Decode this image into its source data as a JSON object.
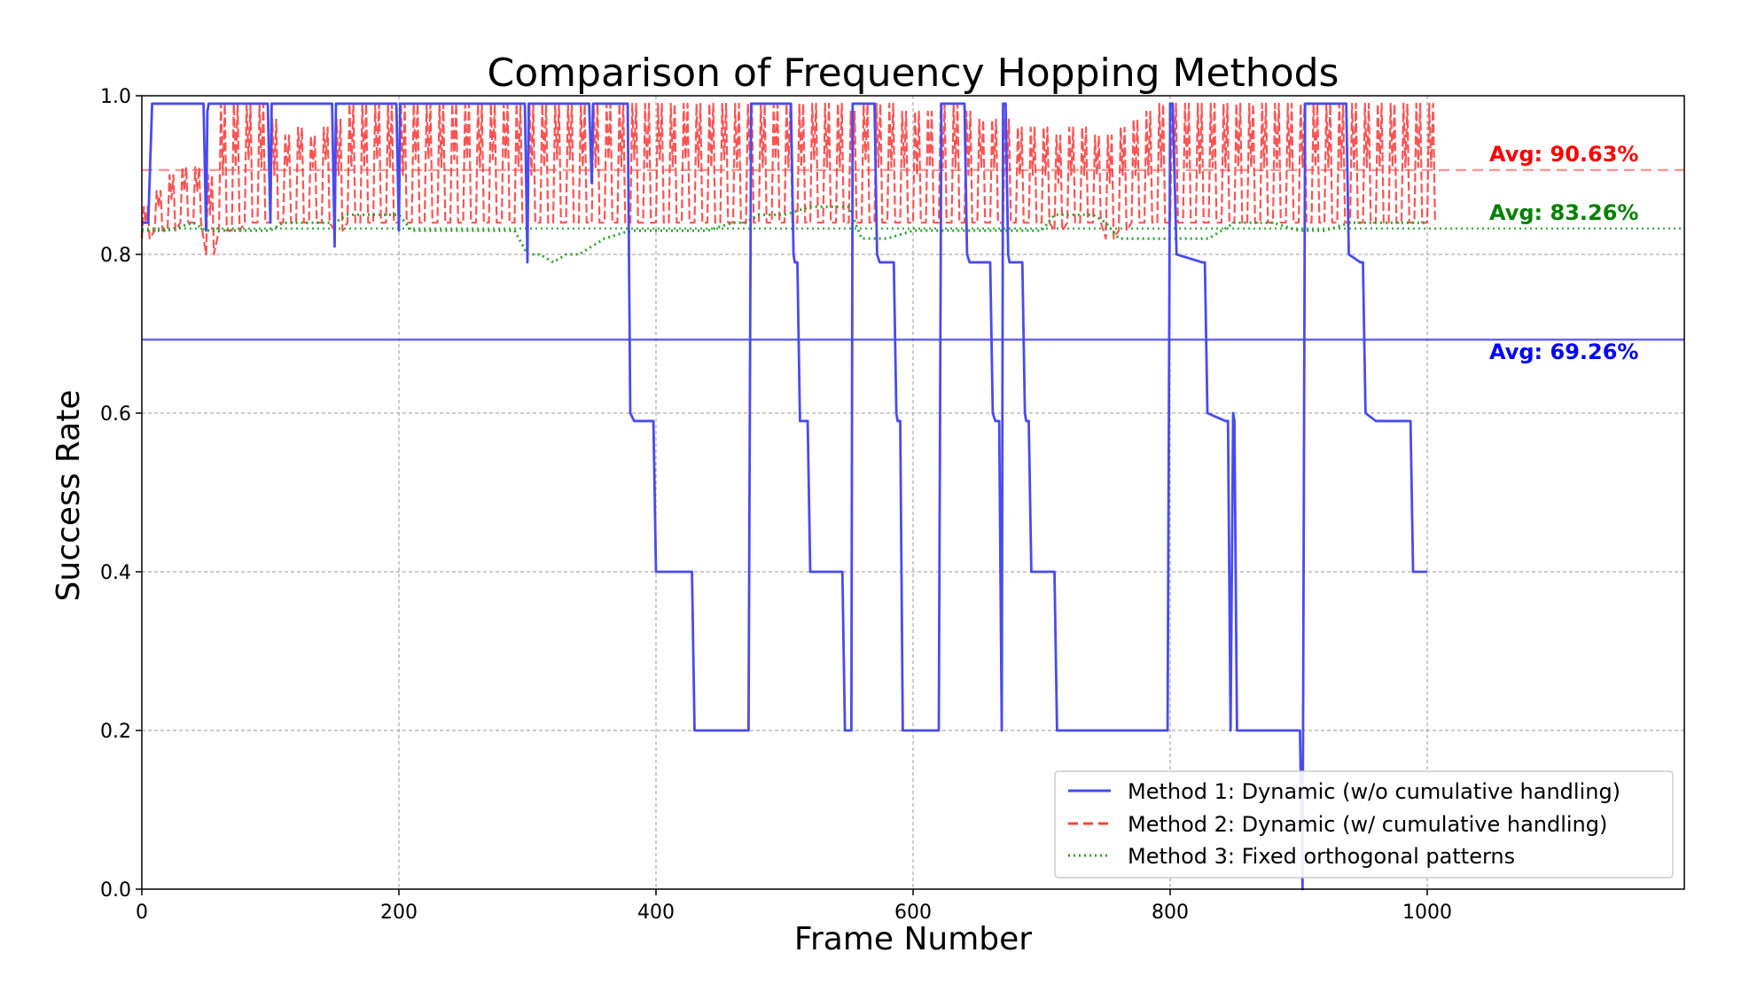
{
  "chart_data": {
    "type": "line",
    "title": "Comparison of Frequency Hopping Methods",
    "xlabel": "Frame Number",
    "ylabel": "Success Rate",
    "xlim": [
      0,
      1200
    ],
    "ylim": [
      0.0,
      1.0
    ],
    "xticks": [
      0,
      200,
      400,
      600,
      800,
      1000
    ],
    "yticks": [
      0.0,
      0.2,
      0.4,
      0.6,
      0.8,
      1.0
    ],
    "xtick_labels": [
      "0",
      "200",
      "400",
      "600",
      "800",
      "1000"
    ],
    "ytick_labels": [
      "0.0",
      "0.2",
      "0.4",
      "0.6",
      "0.8",
      "1.0"
    ],
    "grid": true,
    "legend_position": "bottom-right",
    "series": [
      {
        "name": "Method 1: Dynamic (w/o cumulative handling)",
        "color": "#4a4af0",
        "style": "solid",
        "average": 0.6926,
        "avg_label": "Avg: 69.26%",
        "avg_color": "#0000ff",
        "x": [
          0,
          5,
          8,
          48,
          50,
          51,
          52,
          55,
          98,
          100,
          101,
          102,
          105,
          148,
          150,
          151,
          152,
          155,
          198,
          200,
          201,
          202,
          205,
          298,
          300,
          301,
          302,
          305,
          348,
          350,
          351,
          352,
          355,
          378,
          380,
          383,
          398,
          400,
          401,
          428,
          430,
          433,
          472,
          474,
          476,
          478,
          505,
          507,
          508,
          510,
          512,
          518,
          520,
          522,
          545,
          547,
          549,
          552,
          553,
          555,
          557,
          560,
          570,
          572,
          574,
          575,
          585,
          587,
          588,
          590,
          592,
          600,
          620,
          622,
          624,
          625,
          640,
          642,
          644,
          645,
          660,
          662,
          664,
          667,
          669,
          670,
          672,
          674,
          675,
          685,
          687,
          688,
          690,
          692,
          710,
          712,
          714,
          740,
          760,
          790,
          798,
          800,
          802,
          805,
          825,
          827,
          829,
          843,
          845,
          847,
          849,
          850,
          852,
          855,
          870,
          898,
          900,
          901,
          903,
          905,
          925,
          935,
          937,
          939,
          948,
          950,
          952,
          960,
          985,
          987,
          989,
          1000
        ],
        "y": [
          0.84,
          0.84,
          0.99,
          0.99,
          0.83,
          0.98,
          0.99,
          0.99,
          0.99,
          0.84,
          0.99,
          0.99,
          0.99,
          0.99,
          0.81,
          0.99,
          0.99,
          0.99,
          0.99,
          0.83,
          0.99,
          0.99,
          0.99,
          0.99,
          0.79,
          0.99,
          0.99,
          0.99,
          0.99,
          0.89,
          0.99,
          0.99,
          0.99,
          0.99,
          0.6,
          0.59,
          0.59,
          0.4,
          0.4,
          0.4,
          0.2,
          0.2,
          0.2,
          0.99,
          0.99,
          0.99,
          0.99,
          0.8,
          0.79,
          0.79,
          0.59,
          0.59,
          0.4,
          0.4,
          0.4,
          0.2,
          0.2,
          0.2,
          0.99,
          0.99,
          0.99,
          0.99,
          0.99,
          0.8,
          0.79,
          0.79,
          0.79,
          0.6,
          0.59,
          0.59,
          0.2,
          0.2,
          0.2,
          0.99,
          0.99,
          0.99,
          0.99,
          0.8,
          0.79,
          0.79,
          0.79,
          0.6,
          0.59,
          0.59,
          0.2,
          0.99,
          0.99,
          0.8,
          0.79,
          0.79,
          0.6,
          0.59,
          0.59,
          0.4,
          0.4,
          0.2,
          0.2,
          0.2,
          0.2,
          0.2,
          0.2,
          0.99,
          0.99,
          0.8,
          0.79,
          0.79,
          0.6,
          0.59,
          0.59,
          0.2,
          0.6,
          0.59,
          0.2,
          0.2,
          0.2,
          0.2,
          0.2,
          0.2,
          0.0,
          0.99,
          0.99,
          0.99,
          0.99,
          0.8,
          0.79,
          0.79,
          0.6,
          0.59,
          0.59,
          0.59,
          0.4,
          0.4
        ]
      },
      {
        "name": "Method 2: Dynamic (w/ cumulative handling)",
        "color": "#ff4040",
        "style": "dashed",
        "average": 0.9063,
        "avg_label": "Avg: 90.63%",
        "avg_color": "#ff0000",
        "x": [
          0,
          10,
          20,
          30,
          40,
          50,
          60,
          70,
          80,
          90,
          100,
          110,
          120,
          130,
          140,
          150,
          160,
          170,
          180,
          190,
          200,
          210,
          220,
          230,
          240,
          250,
          260,
          270,
          280,
          290,
          300,
          310,
          320,
          330,
          340,
          350,
          360,
          370,
          380,
          390,
          400,
          410,
          420,
          430,
          440,
          450,
          460,
          470,
          480,
          490,
          500,
          510,
          520,
          530,
          540,
          550,
          560,
          570,
          580,
          590,
          600,
          610,
          620,
          630,
          640,
          650,
          660,
          670,
          680,
          690,
          700,
          710,
          720,
          730,
          740,
          750,
          760,
          770,
          780,
          790,
          800,
          810,
          820,
          830,
          840,
          850,
          860,
          870,
          880,
          890,
          900,
          910,
          920,
          930,
          940,
          950,
          960,
          970,
          980,
          990,
          1000
        ],
        "y": [
          0.84,
          0.86,
          0.87,
          0.88,
          0.88,
          0.85,
          0.9,
          0.91,
          0.92,
          0.91,
          0.9,
          0.91,
          0.92,
          0.91,
          0.92,
          0.9,
          0.91,
          0.91,
          0.92,
          0.91,
          0.9,
          0.92,
          0.92,
          0.91,
          0.92,
          0.92,
          0.91,
          0.92,
          0.92,
          0.91,
          0.9,
          0.91,
          0.92,
          0.92,
          0.91,
          0.91,
          0.92,
          0.91,
          0.92,
          0.91,
          0.92,
          0.91,
          0.92,
          0.91,
          0.91,
          0.92,
          0.91,
          0.92,
          0.91,
          0.92,
          0.91,
          0.91,
          0.92,
          0.91,
          0.91,
          0.91,
          0.92,
          0.91,
          0.91,
          0.91,
          0.9,
          0.91,
          0.91,
          0.91,
          0.9,
          0.91,
          0.91,
          0.9,
          0.9,
          0.9,
          0.9,
          0.89,
          0.9,
          0.9,
          0.9,
          0.89,
          0.9,
          0.9,
          0.9,
          0.91,
          0.91,
          0.91,
          0.9,
          0.91,
          0.91,
          0.91,
          0.91,
          0.91,
          0.91,
          0.91,
          0.91,
          0.91,
          0.91,
          0.91,
          0.91,
          0.91,
          0.91,
          0.91,
          0.91,
          0.91,
          0.91
        ],
        "band_low": [
          0.82,
          0.83,
          0.83,
          0.84,
          0.84,
          0.8,
          0.83,
          0.83,
          0.84,
          0.84,
          0.84,
          0.84,
          0.84,
          0.84,
          0.84,
          0.83,
          0.84,
          0.84,
          0.84,
          0.84,
          0.84,
          0.84,
          0.84,
          0.84,
          0.84,
          0.84,
          0.84,
          0.84,
          0.84,
          0.84,
          0.84,
          0.84,
          0.84,
          0.84,
          0.84,
          0.84,
          0.84,
          0.84,
          0.84,
          0.84,
          0.84,
          0.84,
          0.84,
          0.84,
          0.84,
          0.84,
          0.84,
          0.84,
          0.84,
          0.84,
          0.84,
          0.84,
          0.84,
          0.84,
          0.84,
          0.84,
          0.84,
          0.84,
          0.84,
          0.84,
          0.84,
          0.84,
          0.84,
          0.84,
          0.84,
          0.84,
          0.84,
          0.84,
          0.84,
          0.84,
          0.84,
          0.83,
          0.84,
          0.84,
          0.84,
          0.82,
          0.83,
          0.84,
          0.84,
          0.84,
          0.84,
          0.84,
          0.84,
          0.84,
          0.84,
          0.84,
          0.84,
          0.84,
          0.84,
          0.84,
          0.84,
          0.84,
          0.84,
          0.84,
          0.84,
          0.84,
          0.84,
          0.84,
          0.84,
          0.84,
          0.84
        ],
        "band_high": [
          0.86,
          0.88,
          0.9,
          0.91,
          0.91,
          0.9,
          0.99,
          0.99,
          0.99,
          0.99,
          0.97,
          0.95,
          0.96,
          0.95,
          0.96,
          0.97,
          0.99,
          0.99,
          0.99,
          0.99,
          0.99,
          0.99,
          0.99,
          0.99,
          0.99,
          0.99,
          0.99,
          0.99,
          0.99,
          0.99,
          0.99,
          0.99,
          0.99,
          0.99,
          0.99,
          0.99,
          0.99,
          0.99,
          0.99,
          0.99,
          0.99,
          0.99,
          0.99,
          0.99,
          0.99,
          0.99,
          0.99,
          0.99,
          0.99,
          0.99,
          0.99,
          0.99,
          0.99,
          0.99,
          0.99,
          0.98,
          0.99,
          0.99,
          0.99,
          0.98,
          0.98,
          0.98,
          0.99,
          0.99,
          0.98,
          0.97,
          0.97,
          0.97,
          0.96,
          0.96,
          0.96,
          0.95,
          0.96,
          0.96,
          0.95,
          0.95,
          0.96,
          0.97,
          0.98,
          0.99,
          0.99,
          0.99,
          0.99,
          0.99,
          0.99,
          0.99,
          0.99,
          0.99,
          0.99,
          0.99,
          0.99,
          0.99,
          0.99,
          0.99,
          0.99,
          0.99,
          0.99,
          0.99,
          0.99,
          0.99,
          0.99
        ]
      },
      {
        "name": "Method 3: Fixed orthogonal patterns",
        "color": "#2ca02c",
        "style": "dotted",
        "average": 0.8326,
        "avg_label": "Avg: 83.26%",
        "avg_color": "#008000",
        "x": [
          0,
          10,
          20,
          40,
          50,
          60,
          100,
          110,
          150,
          160,
          180,
          200,
          210,
          240,
          260,
          290,
          300,
          310,
          320,
          330,
          340,
          350,
          360,
          380,
          400,
          420,
          440,
          460,
          470,
          480,
          500,
          520,
          530,
          550,
          560,
          570,
          580,
          600,
          620,
          640,
          660,
          680,
          700,
          710,
          720,
          740,
          750,
          760,
          780,
          800,
          810,
          830,
          850,
          870,
          880,
          900,
          920,
          940,
          960,
          980,
          1000
        ],
        "y": [
          0.83,
          0.83,
          0.83,
          0.84,
          0.83,
          0.83,
          0.83,
          0.84,
          0.84,
          0.85,
          0.85,
          0.85,
          0.83,
          0.83,
          0.83,
          0.83,
          0.8,
          0.8,
          0.79,
          0.8,
          0.8,
          0.81,
          0.82,
          0.83,
          0.83,
          0.83,
          0.83,
          0.84,
          0.84,
          0.85,
          0.85,
          0.86,
          0.86,
          0.86,
          0.82,
          0.82,
          0.82,
          0.83,
          0.83,
          0.83,
          0.83,
          0.83,
          0.83,
          0.85,
          0.85,
          0.85,
          0.84,
          0.82,
          0.82,
          0.82,
          0.82,
          0.82,
          0.84,
          0.84,
          0.84,
          0.83,
          0.83,
          0.84,
          0.84,
          0.84,
          0.84
        ]
      }
    ]
  }
}
